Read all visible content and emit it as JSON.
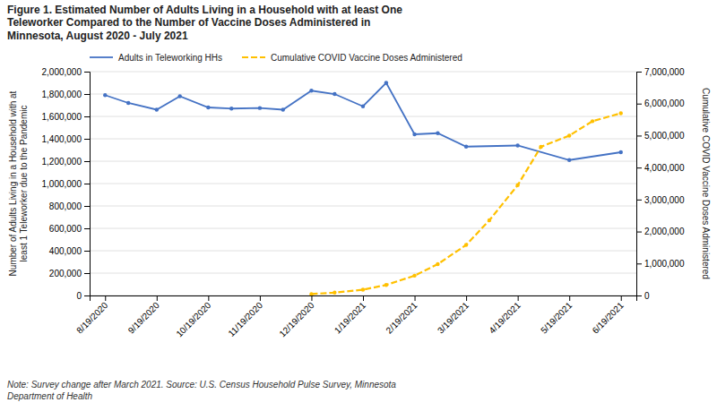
{
  "chart_data": {
    "type": "line",
    "title": "Figure 1. Estimated Number of Adults Living in a Household with at least One\nTeleworker Compared to the Number of Vaccine Doses Administered in\nMinnesota, August 2020 - July 2021",
    "annotations": [
      "Note: Survey change after March 2021. Source: U.S. Census Household Pulse Survey, Minnesota\nDepartment of Health"
    ],
    "ylabel": "Number of Adults Living in a Household with at\nleast 1 Teleworker due to the Pandemic",
    "y2label": "Cumulative COVID Vaccine Doses Administered",
    "xlim": [
      -0.3,
      10.3
    ],
    "xticks": [
      {
        "value": 0,
        "label": "8/19/2020"
      },
      {
        "value": 1,
        "label": "9/19/2020"
      },
      {
        "value": 2,
        "label": "10/19/2020"
      },
      {
        "value": 3,
        "label": "11/19/2020"
      },
      {
        "value": 4,
        "label": "12/19/2020"
      },
      {
        "value": 5,
        "label": "1/19/2021"
      },
      {
        "value": 6,
        "label": "2/19/2021"
      },
      {
        "value": 7,
        "label": "3/19/2021"
      },
      {
        "value": 8,
        "label": "4/19/2021"
      },
      {
        "value": 9,
        "label": "5/19/2021"
      },
      {
        "value": 10,
        "label": "6/19/2021"
      }
    ],
    "ylim": [
      0,
      2000000
    ],
    "yticks": [
      0,
      {
        "value": 200000,
        "label": "200,000"
      },
      {
        "value": 400000,
        "label": "400,000"
      },
      {
        "value": 600000,
        "label": "600,000"
      },
      {
        "value": 800000,
        "label": "800,000"
      },
      {
        "value": 1000000,
        "label": "1,000,000"
      },
      {
        "value": 1200000,
        "label": "1,200,000"
      },
      {
        "value": 1400000,
        "label": "1,400,000"
      },
      {
        "value": 1600000,
        "label": "1,600,000"
      },
      {
        "value": 1800000,
        "label": "1,800,000"
      },
      {
        "value": 2000000,
        "label": "2,000,000"
      }
    ],
    "y2lim": [
      0,
      7000000
    ],
    "y2ticks": [
      0,
      {
        "value": 1000000,
        "label": "1,000,000"
      },
      {
        "value": 2000000,
        "label": "2,000,000"
      },
      {
        "value": 3000000,
        "label": "3,000,000"
      },
      {
        "value": 4000000,
        "label": "4,000,000"
      },
      {
        "value": 5000000,
        "label": "5,000,000"
      },
      {
        "value": 6000000,
        "label": "6,000,000"
      },
      {
        "value": 7000000,
        "label": "7,000,000"
      }
    ],
    "grid": true,
    "legend": "upper left",
    "series": [
      {
        "name": "Adults in Teleworking HHs",
        "color": "#4472C4",
        "marker": "circle",
        "line_style": "solid",
        "x": [
          0,
          0.45,
          1,
          1.45,
          2,
          2.45,
          3,
          3.45,
          4,
          4.45,
          5,
          5.45,
          6,
          6.45,
          7,
          8,
          9,
          10
        ],
        "values": [
          1790000,
          1720000,
          1660000,
          1780000,
          1680000,
          1670000,
          1675000,
          1660000,
          1830000,
          1800000,
          1690000,
          1900000,
          1440000,
          1450000,
          1330000,
          1340000,
          1210000,
          1280000
        ]
      },
      {
        "name": "Cumulative COVID Vaccine Doses Administered",
        "color": "#FFC000",
        "marker": "circle",
        "line_style": "dashed",
        "axis": "y2",
        "x": [
          4,
          4.45,
          5,
          5.45,
          6,
          6.45,
          7,
          7.45,
          8,
          8.45,
          9,
          9.45,
          10
        ],
        "values": [
          45000,
          90000,
          180000,
          330000,
          620000,
          980000,
          1580000,
          2350000,
          3450000,
          4650000,
          5000000,
          5450000,
          5700000
        ]
      }
    ]
  }
}
